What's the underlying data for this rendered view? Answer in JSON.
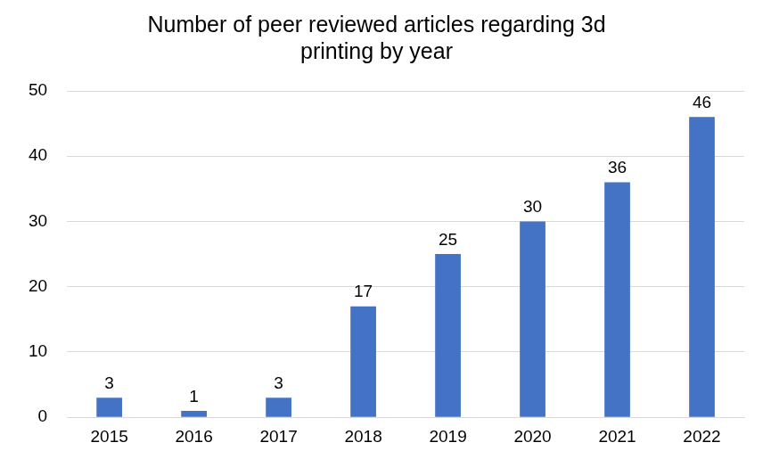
{
  "chart_data": {
    "type": "bar",
    "title": "Number of peer reviewed articles regarding 3d printing by year",
    "categories": [
      "2015",
      "2016",
      "2017",
      "2018",
      "2019",
      "2020",
      "2021",
      "2022"
    ],
    "values": [
      3,
      1,
      3,
      17,
      25,
      30,
      36,
      46
    ],
    "color": "#4472c4",
    "ylim": [
      0,
      50
    ],
    "yticks": [
      0,
      10,
      20,
      30,
      40,
      50
    ],
    "grid": true,
    "data_labels": true
  }
}
